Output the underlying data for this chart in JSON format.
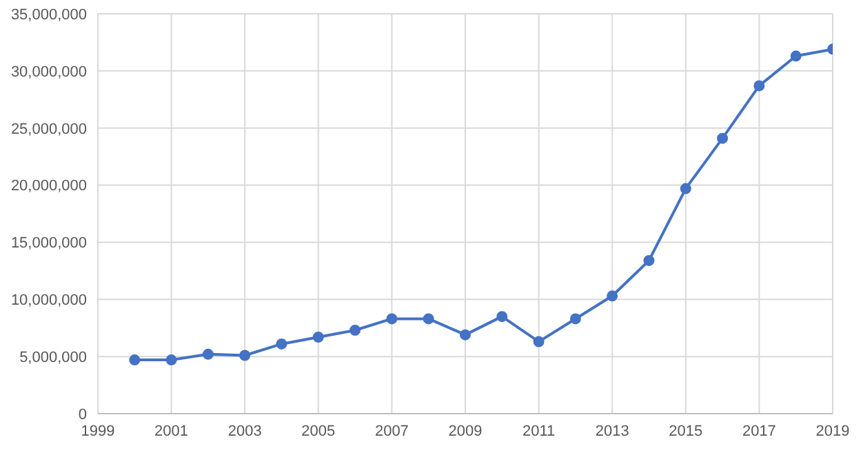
{
  "chart_data": {
    "type": "line",
    "x": [
      2000,
      2001,
      2002,
      2003,
      2004,
      2005,
      2006,
      2007,
      2008,
      2009,
      2010,
      2011,
      2012,
      2013,
      2014,
      2015,
      2016,
      2017,
      2018,
      2019
    ],
    "series": [
      {
        "color": "#4472c4",
        "values": [
          4700000,
          4700000,
          5200000,
          5100000,
          6100000,
          6700000,
          7300000,
          8300000,
          8300000,
          6900000,
          8500000,
          6300000,
          8300000,
          10300000,
          13400000,
          19700000,
          24100000,
          28700000,
          31300000,
          31900000
        ]
      }
    ],
    "xlim": [
      1999,
      2019
    ],
    "xticks": [
      1999,
      2001,
      2003,
      2005,
      2007,
      2009,
      2011,
      2013,
      2015,
      2017,
      2019
    ],
    "ylim": [
      0,
      35000000
    ],
    "yticks": [
      0,
      {
        "value": 5000000,
        "label": "5,000,000"
      },
      {
        "value": 10000000,
        "label": "10,000,000"
      },
      {
        "value": 15000000,
        "label": "15,000,000"
      },
      {
        "value": 20000000,
        "label": "20,000,000"
      },
      {
        "value": 25000000,
        "label": "25,000,000"
      },
      {
        "value": 30000000,
        "label": "30,000,000"
      },
      {
        "value": 35000000,
        "label": "35,000,000"
      }
    ],
    "grid": true,
    "marker": "circle",
    "line_style": "solid",
    "legend": false
  }
}
